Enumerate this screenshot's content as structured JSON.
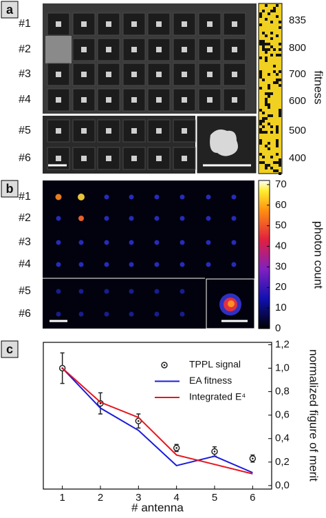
{
  "panel_a": {
    "label": "a",
    "rows": [
      "#1",
      "#2",
      "#3",
      "#4",
      "#5",
      "#6"
    ],
    "fitness_label": "fitness",
    "fitness_ticks": [
      835,
      800,
      700,
      600,
      500,
      400
    ]
  },
  "panel_b": {
    "label": "b",
    "rows": [
      "#1",
      "#2",
      "#3",
      "#4",
      "#5",
      "#6"
    ],
    "colorbar_label": "photon count",
    "colorbar_lim": [
      0,
      72
    ],
    "colorbar_ticks": [
      0,
      10,
      20,
      30,
      40,
      50,
      60,
      70
    ]
  },
  "panel_c_label": "c",
  "chart_data": {
    "type": "line",
    "x_label": "# antenna",
    "y_label": "normalized figure of merit",
    "x": [
      1,
      2,
      3,
      4,
      5,
      6
    ],
    "series": [
      {
        "name": "TPPL signal",
        "color": "#222222",
        "marker": "circle",
        "values": [
          1.0,
          0.7,
          0.55,
          0.32,
          0.29,
          0.23
        ],
        "errors": [
          0.13,
          0.09,
          0.06,
          0.03,
          0.04,
          0.03
        ]
      },
      {
        "name": "EA fitness",
        "color": "#1a1adc",
        "values": [
          1.0,
          0.66,
          0.47,
          0.17,
          0.25,
          0.11
        ]
      },
      {
        "name": "Integrated E⁴",
        "color": "#e8141c",
        "values": [
          1.0,
          0.71,
          0.58,
          0.26,
          0.18,
          0.1
        ]
      }
    ],
    "xlim": [
      0.5,
      6.5
    ],
    "ylim": [
      -0.03,
      1.22
    ],
    "xticks": [
      1,
      2,
      3,
      4,
      5,
      6
    ],
    "yticks": [
      {
        "value": 0,
        "label": "0,0"
      },
      {
        "value": 0.2,
        "label": "0,2"
      },
      {
        "value": 0.4,
        "label": "0,4"
      },
      {
        "value": 0.6,
        "label": "0,6"
      },
      {
        "value": 0.8,
        "label": "0,8"
      },
      {
        "value": 1.0,
        "label": "1,0"
      },
      {
        "value": 1.2,
        "label": "1,2"
      }
    ],
    "legend": "upper right",
    "grid": false
  }
}
